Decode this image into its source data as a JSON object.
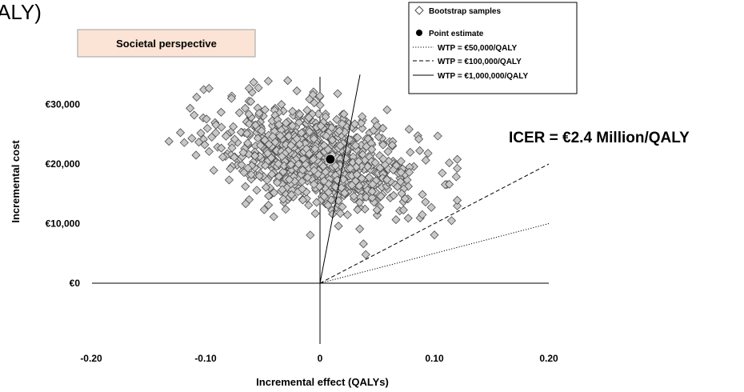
{
  "header_fragment": "ALY)",
  "perspective_label": "Societal perspective",
  "icer_annotation": "ICER = €2.4 Million/QALY",
  "colors": {
    "perspective_box_fill": "#fbe4d5",
    "perspective_box_stroke": "#a0a0a0",
    "diamond_fill": "#c8c8c8",
    "diamond_stroke": "#4d4d4d",
    "point_estimate": "#000000"
  },
  "chart_data": {
    "type": "scatter",
    "title": "",
    "xlabel": "Incremental effect (QALYs)",
    "ylabel": "Incremental cost",
    "xlim": [
      -0.2,
      0.2
    ],
    "ylim": [
      -10000,
      35000
    ],
    "x_ticks": [
      {
        "value": -0.2,
        "label": "-0.20"
      },
      {
        "value": -0.1,
        "label": "-0.10"
      },
      {
        "value": 0,
        "label": "0"
      },
      {
        "value": 0.1,
        "label": "0.10"
      },
      {
        "value": 0.2,
        "label": "0.20"
      }
    ],
    "y_ticks": [
      {
        "value": 0,
        "label": "€0"
      },
      {
        "value": 10000,
        "label": "€10,000"
      },
      {
        "value": 20000,
        "label": "€20,000"
      },
      {
        "value": 30000,
        "label": "€30,000"
      }
    ],
    "grid": false,
    "legend_position": "top-right",
    "legend": [
      {
        "label": "Bootstrap samples",
        "marker": "diamond"
      },
      {
        "label": "Point estimate",
        "marker": "circle"
      },
      {
        "label": "WTP = €50,000/QALY",
        "marker": "dotted-line"
      },
      {
        "label": "WTP = €100,000/QALY",
        "marker": "dashed-line"
      },
      {
        "label": "WTP = €1,000,000/QALY",
        "marker": "solid-line"
      }
    ],
    "point_estimate": {
      "x": 0.009,
      "y": 20800
    },
    "wtp_lines": [
      {
        "wtp": 50000,
        "style": "dotted",
        "x_end": 0.2
      },
      {
        "wtp": 100000,
        "style": "dashed",
        "x_end": 0.2
      },
      {
        "wtp": 1000000,
        "style": "solid",
        "x_end": 0.035
      }
    ],
    "bootstrap_samples": {
      "count": 1000,
      "x_mean": 0.0,
      "y_mean": 21000,
      "x_sd": 0.042,
      "y_sd": 4300,
      "correlation": -0.35,
      "x_range": [
        -0.135,
        0.12
      ],
      "y_range": [
        4500,
        34000
      ],
      "notable_points": [
        {
          "x": -0.132,
          "y": 23800
        },
        {
          "x": -0.112,
          "y": 24300
        },
        {
          "x": -0.11,
          "y": 28200
        },
        {
          "x": -0.097,
          "y": 32700
        },
        {
          "x": -0.058,
          "y": 33700
        },
        {
          "x": -0.062,
          "y": 32700
        },
        {
          "x": -0.045,
          "y": 13100
        },
        {
          "x": 0.038,
          "y": 6600
        },
        {
          "x": 0.04,
          "y": 4800
        },
        {
          "x": 0.1,
          "y": 8100
        },
        {
          "x": 0.115,
          "y": 10500
        },
        {
          "x": 0.113,
          "y": 16600
        },
        {
          "x": 0.103,
          "y": 24700
        },
        {
          "x": 0.113,
          "y": 20200
        },
        {
          "x": 0.007,
          "y": 13100
        },
        {
          "x": 0.011,
          "y": 11600
        },
        {
          "x": -0.03,
          "y": 12400
        }
      ]
    }
  }
}
